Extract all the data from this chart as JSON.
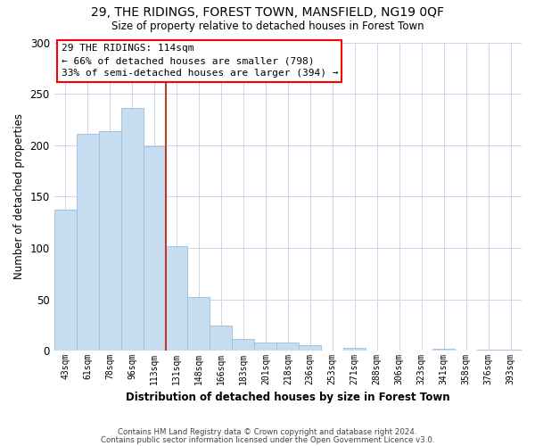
{
  "title1": "29, THE RIDINGS, FOREST TOWN, MANSFIELD, NG19 0QF",
  "title2": "Size of property relative to detached houses in Forest Town",
  "xlabel": "Distribution of detached houses by size in Forest Town",
  "ylabel": "Number of detached properties",
  "categories": [
    "43sqm",
    "61sqm",
    "78sqm",
    "96sqm",
    "113sqm",
    "131sqm",
    "148sqm",
    "166sqm",
    "183sqm",
    "201sqm",
    "218sqm",
    "236sqm",
    "253sqm",
    "271sqm",
    "288sqm",
    "306sqm",
    "323sqm",
    "341sqm",
    "358sqm",
    "376sqm",
    "393sqm"
  ],
  "values": [
    137,
    211,
    214,
    236,
    199,
    102,
    52,
    24,
    11,
    8,
    8,
    5,
    0,
    3,
    0,
    0,
    0,
    2,
    0,
    1,
    1
  ],
  "bar_color": "#c6dcf0",
  "bar_edge_color": "#a0bcd8",
  "vline_color": "#c0392b",
  "vline_index": 4.5,
  "annotation_title": "29 THE RIDINGS: 114sqm",
  "annotation_line1": "← 66% of detached houses are smaller (798)",
  "annotation_line2": "33% of semi-detached houses are larger (394) →",
  "ylim": [
    0,
    300
  ],
  "yticks": [
    0,
    50,
    100,
    150,
    200,
    250,
    300
  ],
  "footer1": "Contains HM Land Registry data © Crown copyright and database right 2024.",
  "footer2": "Contains public sector information licensed under the Open Government Licence v3.0."
}
